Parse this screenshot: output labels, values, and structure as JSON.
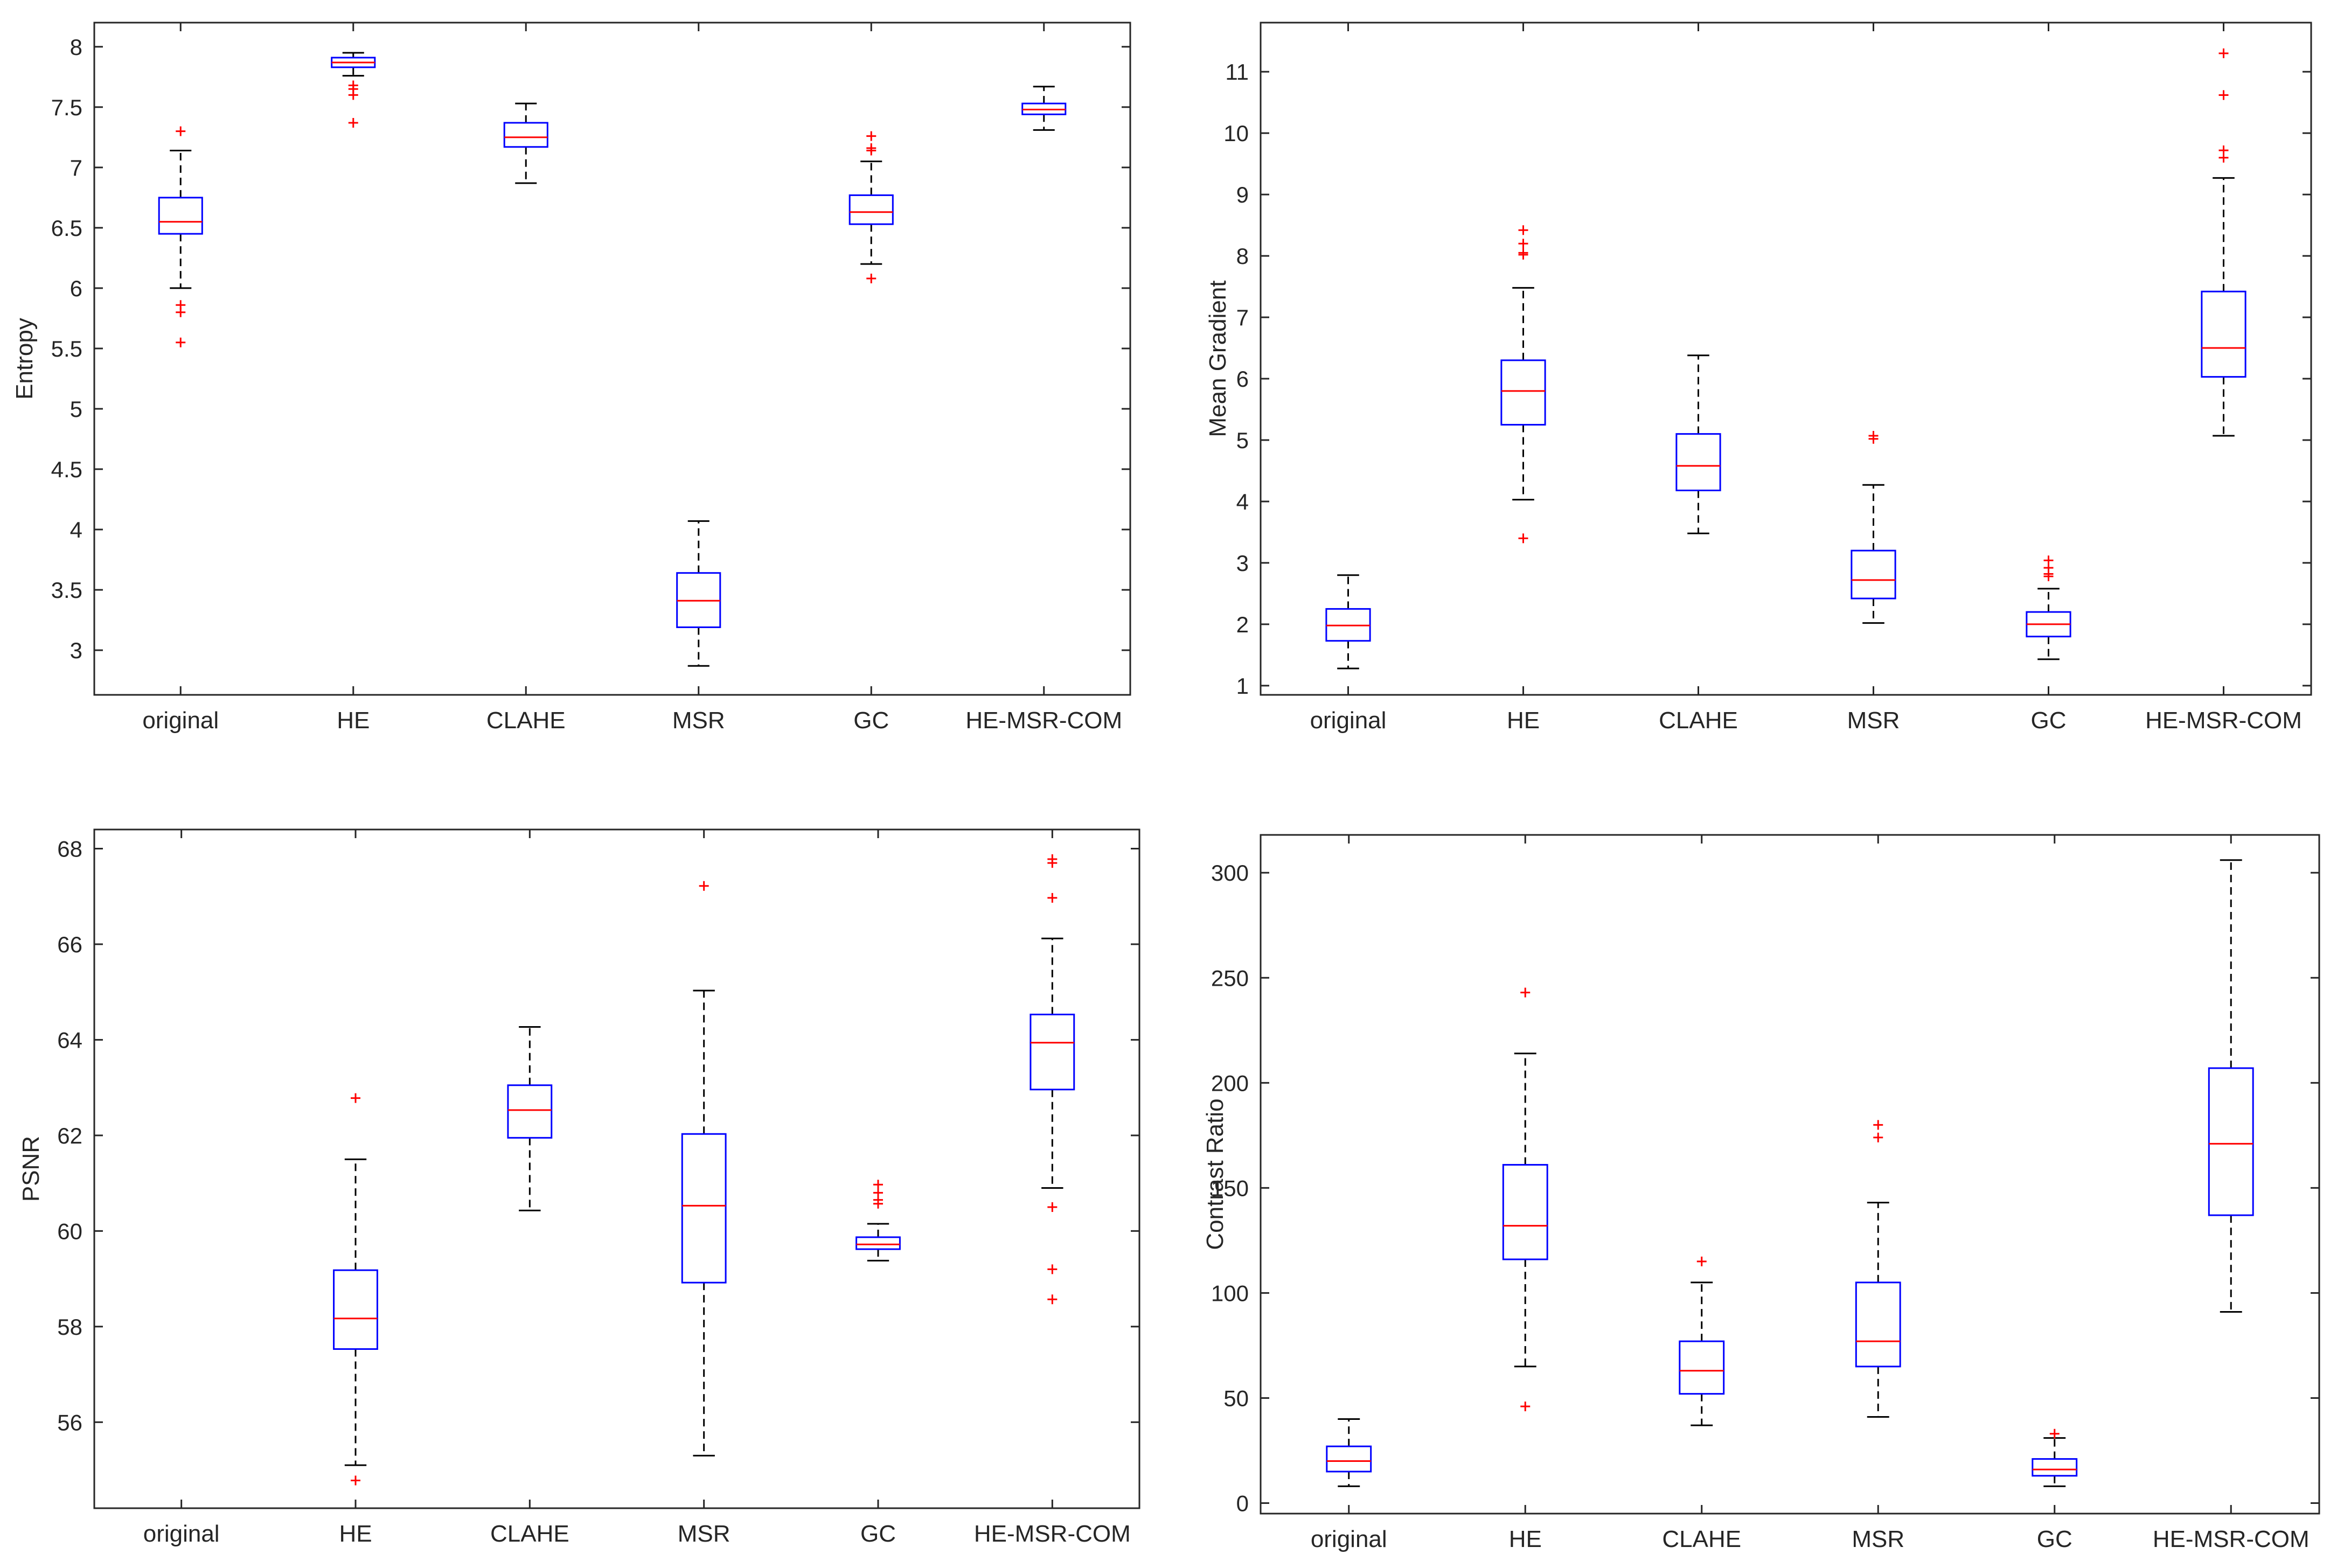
{
  "colors": {
    "box": "#0000ff",
    "median": "#ff0000",
    "outlier": "#ff0000",
    "whisker": "#000000",
    "axis": "#262626"
  },
  "chart_data": [
    {
      "type": "box",
      "ylabel": "Entropy",
      "categories": [
        "original",
        "HE",
        "CLAHE",
        "MSR",
        "GC",
        "HE-MSR-COM"
      ],
      "ylim": [
        2.63,
        8.2
      ],
      "yticks": [
        "3",
        "3.5",
        "4",
        "4.5",
        "5",
        "5.5",
        "6",
        "6.5",
        "7",
        "7.5",
        "8"
      ],
      "boxes": [
        {
          "whisker_low": 6.0,
          "q1": 6.45,
          "median": 6.55,
          "q3": 6.75,
          "whisker_high": 7.14,
          "outliers": [
            7.3,
            5.86,
            5.8,
            5.55
          ]
        },
        {
          "whisker_low": 7.76,
          "q1": 7.83,
          "median": 7.87,
          "q3": 7.91,
          "whisker_high": 7.95,
          "outliers": [
            7.68,
            7.65,
            7.6,
            7.37
          ]
        },
        {
          "whisker_low": 6.87,
          "q1": 7.17,
          "median": 7.25,
          "q3": 7.37,
          "whisker_high": 7.53,
          "outliers": []
        },
        {
          "whisker_low": 2.87,
          "q1": 3.19,
          "median": 3.41,
          "q3": 3.64,
          "whisker_high": 4.07,
          "outliers": []
        },
        {
          "whisker_low": 6.2,
          "q1": 6.53,
          "median": 6.63,
          "q3": 6.77,
          "whisker_high": 7.05,
          "outliers": [
            7.26,
            7.16,
            7.14,
            6.08
          ]
        },
        {
          "whisker_low": 7.31,
          "q1": 7.44,
          "median": 7.48,
          "q3": 7.53,
          "whisker_high": 7.67,
          "outliers": []
        }
      ]
    },
    {
      "type": "box",
      "ylabel": "Mean Gradient",
      "categories": [
        "original",
        "HE",
        "CLAHE",
        "MSR",
        "GC",
        "HE-MSR-COM"
      ],
      "ylim": [
        0.85,
        11.8
      ],
      "yticks": [
        "1",
        "2",
        "3",
        "4",
        "5",
        "6",
        "7",
        "8",
        "9",
        "10",
        "11"
      ],
      "boxes": [
        {
          "whisker_low": 1.28,
          "q1": 1.73,
          "median": 1.98,
          "q3": 2.25,
          "whisker_high": 2.8,
          "outliers": []
        },
        {
          "whisker_low": 4.03,
          "q1": 5.25,
          "median": 5.8,
          "q3": 6.3,
          "whisker_high": 7.48,
          "outliers": [
            8.42,
            8.2,
            8.05,
            8.02,
            3.4
          ]
        },
        {
          "whisker_low": 3.48,
          "q1": 4.18,
          "median": 4.58,
          "q3": 5.1,
          "whisker_high": 6.38,
          "outliers": []
        },
        {
          "whisker_low": 2.02,
          "q1": 2.42,
          "median": 2.72,
          "q3": 3.2,
          "whisker_high": 4.27,
          "outliers": [
            5.07,
            5.02
          ]
        },
        {
          "whisker_low": 1.43,
          "q1": 1.8,
          "median": 2.0,
          "q3": 2.2,
          "whisker_high": 2.58,
          "outliers": [
            3.04,
            2.92,
            2.82,
            2.78
          ]
        },
        {
          "whisker_low": 5.07,
          "q1": 6.03,
          "median": 6.5,
          "q3": 7.42,
          "whisker_high": 9.27,
          "outliers": [
            11.3,
            10.62,
            9.72,
            9.6
          ]
        }
      ]
    },
    {
      "type": "box",
      "ylabel": "PSNR",
      "categories": [
        "original",
        "HE",
        "CLAHE",
        "MSR",
        "GC",
        "HE-MSR-COM"
      ],
      "ylim": [
        54.2,
        68.4
      ],
      "yticks": [
        "56",
        "58",
        "60",
        "62",
        "64",
        "66",
        "68"
      ],
      "boxes": [
        null,
        {
          "whisker_low": 55.1,
          "q1": 57.53,
          "median": 58.17,
          "q3": 59.18,
          "whisker_high": 61.5,
          "outliers": [
            62.78,
            54.78
          ]
        },
        {
          "whisker_low": 60.43,
          "q1": 61.95,
          "median": 62.53,
          "q3": 63.05,
          "whisker_high": 64.27,
          "outliers": []
        },
        {
          "whisker_low": 55.3,
          "q1": 58.92,
          "median": 60.53,
          "q3": 62.03,
          "whisker_high": 65.03,
          "outliers": [
            67.22
          ]
        },
        {
          "whisker_low": 59.38,
          "q1": 59.62,
          "median": 59.72,
          "q3": 59.87,
          "whisker_high": 60.15,
          "outliers": [
            60.97,
            60.8,
            60.65,
            60.57
          ]
        },
        {
          "whisker_low": 60.9,
          "q1": 62.96,
          "median": 63.94,
          "q3": 64.53,
          "whisker_high": 66.12,
          "outliers": [
            67.78,
            67.7,
            66.97,
            60.5,
            59.2,
            58.57
          ]
        }
      ]
    },
    {
      "type": "box",
      "ylabel": "Contrast Ratio",
      "categories": [
        "original",
        "HE",
        "CLAHE",
        "MSR",
        "GC",
        "HE-MSR-COM"
      ],
      "ylim": [
        -5,
        318
      ],
      "yticks": [
        "0",
        "50",
        "100",
        "150",
        "200",
        "250",
        "300"
      ],
      "boxes": [
        {
          "whisker_low": 8,
          "q1": 15,
          "median": 20,
          "q3": 27,
          "whisker_high": 40,
          "outliers": []
        },
        {
          "whisker_low": 65,
          "q1": 116,
          "median": 132,
          "q3": 161,
          "whisker_high": 214,
          "outliers": [
            243,
            46
          ]
        },
        {
          "whisker_low": 37,
          "q1": 52,
          "median": 63,
          "q3": 77,
          "whisker_high": 105,
          "outliers": [
            115
          ]
        },
        {
          "whisker_low": 41,
          "q1": 65,
          "median": 77,
          "q3": 105,
          "whisker_high": 143,
          "outliers": [
            180,
            174
          ]
        },
        {
          "whisker_low": 8,
          "q1": 13,
          "median": 16,
          "q3": 21,
          "whisker_high": 31,
          "outliers": [
            33
          ]
        },
        {
          "whisker_low": 91,
          "q1": 137,
          "median": 171,
          "q3": 207,
          "whisker_high": 306,
          "outliers": []
        }
      ]
    }
  ]
}
